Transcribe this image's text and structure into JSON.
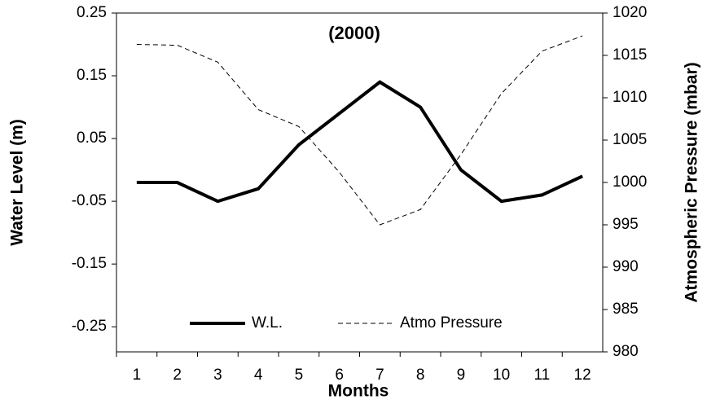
{
  "chart_data": {
    "type": "line",
    "title": "(2000)",
    "x_label": "Months",
    "y_label": "Water  Level (m)",
    "y2_label": "Atmospheric  Pressure (mbar)",
    "categories": [
      "1",
      "2",
      "3",
      "4",
      "5",
      "6",
      "7",
      "8",
      "9",
      "10",
      "11",
      "12"
    ],
    "ylim": [
      -0.29,
      0.25
    ],
    "yticks": [
      -0.25,
      -0.15,
      -0.05,
      0.05,
      0.15,
      0.25
    ],
    "y2lim": [
      980,
      1020
    ],
    "y2ticks": [
      980,
      985,
      990,
      995,
      1000,
      1005,
      1010,
      1015,
      1020
    ],
    "legend": "bottom",
    "series": [
      {
        "name": "W.L.",
        "color": "#000000",
        "style": "solid",
        "values": [
          -0.02,
          -0.02,
          -0.05,
          -0.03,
          0.04,
          0.09,
          0.14,
          0.1,
          0.0,
          -0.05,
          -0.04,
          -0.01
        ]
      },
      {
        "name": "Atmo Pressure",
        "color": "#000000",
        "style": "dashed",
        "axis": "y2",
        "values": [
          1016.3,
          1016.2,
          1014.2,
          1008.6,
          1006.6,
          1001.2,
          995.0,
          996.8,
          1003.3,
          1010.5,
          1015.5,
          1017.3
        ]
      }
    ]
  }
}
